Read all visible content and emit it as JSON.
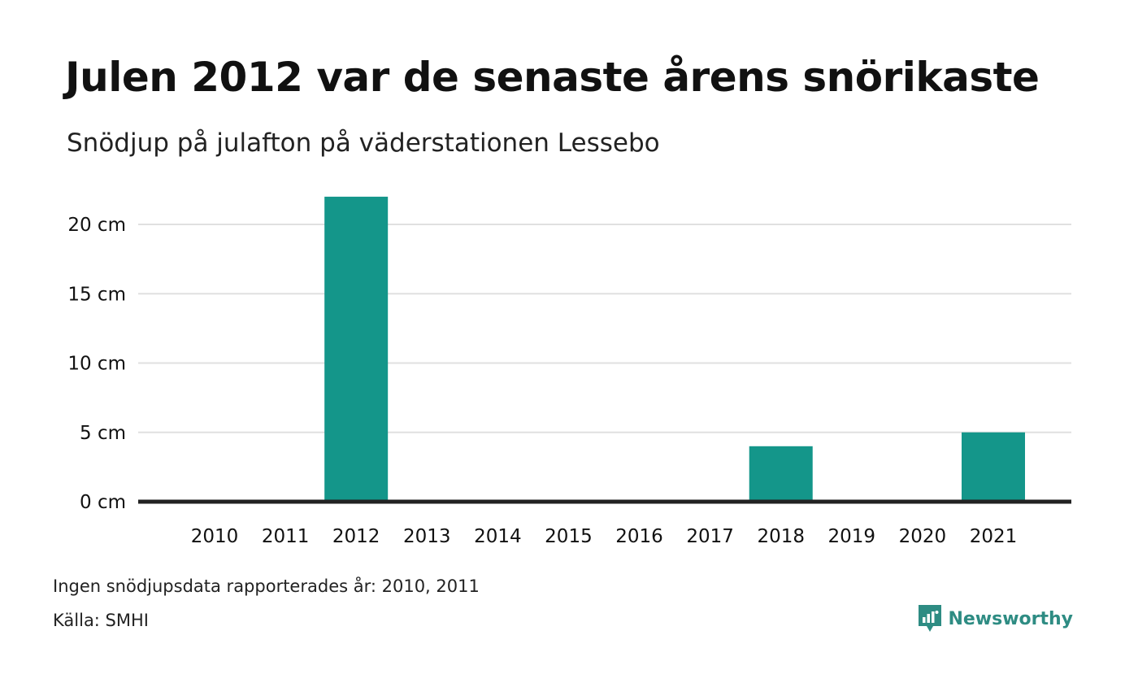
{
  "title": "Julen 2012 var de senaste årens snörikaste",
  "subtitle": "Snödjup på julafton på väderstationen Lessebo",
  "footer": {
    "note": "Ingen snödjupsdata rapporterades år: 2010, 2011",
    "source": "Källa: SMHI",
    "brand": "Newsworthy",
    "brand_icon": "bar-chart-bubble-icon"
  },
  "colors": {
    "bar": "#14968a",
    "brand": "#2e8c83",
    "grid": "#e0e0e0",
    "baseline": "#222222"
  },
  "chart_data": {
    "type": "bar",
    "categories": [
      "2010",
      "2011",
      "2012",
      "2013",
      "2014",
      "2015",
      "2016",
      "2017",
      "2018",
      "2019",
      "2020",
      "2021"
    ],
    "values": [
      null,
      null,
      22,
      0,
      0,
      0,
      0,
      0,
      4,
      0,
      0,
      5
    ],
    "ylim": [
      0,
      22
    ],
    "yticks": [
      0,
      5,
      10,
      15,
      20
    ],
    "ytick_labels": [
      "0 cm",
      "5 cm",
      "10 cm",
      "15 cm",
      "20 cm"
    ],
    "grid": true,
    "legend": "none"
  }
}
